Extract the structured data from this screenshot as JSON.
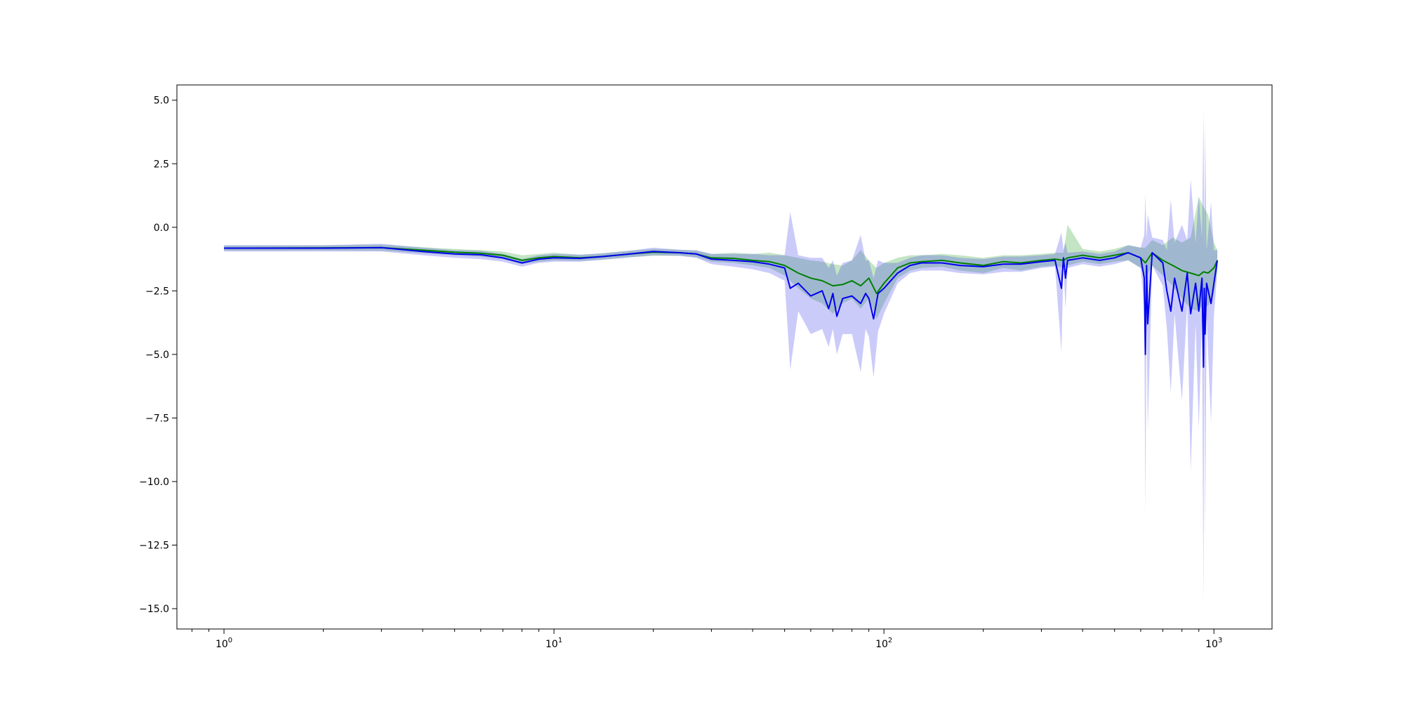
{
  "chart_data": {
    "type": "line",
    "title": "",
    "xlabel": "",
    "ylabel": "",
    "x_scale": "log",
    "xlim": [
      0.72,
      1500
    ],
    "ylim": [
      -15.8,
      5.6
    ],
    "grid": false,
    "legend": "none",
    "x_ticks": [
      {
        "value": 1,
        "base": "10",
        "exp": "0"
      },
      {
        "value": 10,
        "base": "10",
        "exp": "1"
      },
      {
        "value": 100,
        "base": "10",
        "exp": "2"
      },
      {
        "value": 1000,
        "base": "10",
        "exp": "3"
      }
    ],
    "y_ticks": [
      {
        "value": 5.0,
        "label": "5.0"
      },
      {
        "value": 2.5,
        "label": "2.5"
      },
      {
        "value": 0.0,
        "label": "0.0"
      },
      {
        "value": -2.5,
        "label": "−2.5"
      },
      {
        "value": -5.0,
        "label": "−5.0"
      },
      {
        "value": -7.5,
        "label": "−7.5"
      },
      {
        "value": -10.0,
        "label": "−10.0"
      },
      {
        "value": -12.5,
        "label": "−12.5"
      },
      {
        "value": -15.0,
        "label": "−15.0"
      }
    ],
    "series": [
      {
        "color": "#008000",
        "band_color": "#2ca02c",
        "x": [
          1,
          2,
          3,
          4,
          5,
          6,
          7,
          8,
          9,
          10,
          12,
          14,
          17,
          20,
          24,
          27,
          30,
          35,
          40,
          45,
          50,
          55,
          60,
          65,
          70,
          75,
          80,
          85,
          90,
          95,
          100,
          110,
          120,
          130,
          150,
          170,
          200,
          230,
          260,
          300,
          330,
          350,
          360,
          400,
          450,
          500,
          550,
          600,
          620,
          650,
          700,
          750,
          800,
          850,
          900,
          930,
          960,
          1000,
          1024
        ],
        "y": [
          -0.82,
          -0.81,
          -0.8,
          -0.9,
          -0.98,
          -1.02,
          -1.1,
          -1.3,
          -1.2,
          -1.15,
          -1.2,
          -1.15,
          -1.05,
          -0.98,
          -1.0,
          -1.05,
          -1.2,
          -1.22,
          -1.3,
          -1.35,
          -1.5,
          -1.8,
          -2.0,
          -2.1,
          -2.3,
          -2.25,
          -2.1,
          -2.3,
          -2.0,
          -2.6,
          -2.2,
          -1.6,
          -1.4,
          -1.35,
          -1.3,
          -1.4,
          -1.5,
          -1.35,
          -1.4,
          -1.3,
          -1.25,
          -1.3,
          -1.2,
          -1.1,
          -1.2,
          -1.1,
          -1.0,
          -1.2,
          -1.4,
          -1.0,
          -1.3,
          -1.5,
          -1.7,
          -1.8,
          -1.9,
          -1.75,
          -1.8,
          -1.6,
          -1.3
        ],
        "lower": [
          -0.92,
          -0.91,
          -0.92,
          -1.02,
          -1.1,
          -1.15,
          -1.25,
          -1.45,
          -1.35,
          -1.3,
          -1.32,
          -1.27,
          -1.18,
          -1.12,
          -1.12,
          -1.18,
          -1.35,
          -1.4,
          -1.5,
          -1.6,
          -1.9,
          -2.4,
          -2.8,
          -3.0,
          -3.4,
          -3.0,
          -2.8,
          -3.2,
          -2.8,
          -3.6,
          -3.0,
          -2.0,
          -1.7,
          -1.6,
          -1.55,
          -1.7,
          -1.8,
          -1.6,
          -1.7,
          -1.55,
          -1.5,
          -1.6,
          -1.5,
          -1.35,
          -1.45,
          -1.35,
          -1.3,
          -1.6,
          -2.0,
          -1.5,
          -1.9,
          -2.3,
          -2.8,
          -3.2,
          -3.3,
          -3.0,
          -3.1,
          -2.6,
          -1.7
        ],
        "upper": [
          -0.72,
          -0.71,
          -0.68,
          -0.78,
          -0.85,
          -0.9,
          -0.95,
          -1.1,
          -1.05,
          -1.0,
          -1.08,
          -1.03,
          -0.92,
          -0.85,
          -0.88,
          -0.92,
          -1.05,
          -1.0,
          -1.05,
          -1.0,
          -1.1,
          -1.2,
          -1.3,
          -1.35,
          -1.45,
          -1.5,
          -1.3,
          -0.9,
          -1.3,
          -1.6,
          -1.4,
          -1.2,
          -1.1,
          -1.1,
          -1.05,
          -1.1,
          -1.2,
          -1.1,
          -1.1,
          -1.05,
          -1.0,
          -1.0,
          0.1,
          -0.85,
          -0.95,
          -0.85,
          -0.7,
          -0.8,
          -0.8,
          -0.5,
          -0.7,
          -0.4,
          -0.6,
          -0.4,
          1.2,
          0.8,
          0.5,
          -0.6,
          -0.9
        ]
      },
      {
        "color": "#0000ee",
        "band_color": "#4444ee",
        "x": [
          1,
          2,
          3,
          4,
          5,
          6,
          7,
          8,
          9,
          10,
          12,
          14,
          17,
          20,
          24,
          27,
          30,
          35,
          40,
          45,
          50,
          52,
          55,
          60,
          65,
          68,
          70,
          72,
          75,
          80,
          85,
          88,
          90,
          93,
          96,
          100,
          110,
          120,
          130,
          150,
          170,
          200,
          230,
          260,
          300,
          330,
          345,
          350,
          355,
          360,
          400,
          450,
          500,
          550,
          600,
          615,
          620,
          625,
          630,
          650,
          700,
          720,
          740,
          760,
          800,
          830,
          850,
          880,
          900,
          920,
          930,
          935,
          940,
          950,
          980,
          1000,
          1024
        ],
        "y": [
          -0.82,
          -0.82,
          -0.8,
          -0.95,
          -1.05,
          -1.08,
          -1.2,
          -1.4,
          -1.25,
          -1.2,
          -1.22,
          -1.15,
          -1.05,
          -0.95,
          -1.0,
          -1.05,
          -1.25,
          -1.3,
          -1.35,
          -1.45,
          -1.6,
          -2.4,
          -2.2,
          -2.7,
          -2.5,
          -3.2,
          -2.6,
          -3.5,
          -2.8,
          -2.7,
          -3.0,
          -2.6,
          -2.8,
          -3.6,
          -2.6,
          -2.4,
          -1.8,
          -1.5,
          -1.4,
          -1.4,
          -1.5,
          -1.55,
          -1.45,
          -1.45,
          -1.35,
          -1.3,
          -2.4,
          -1.2,
          -2.0,
          -1.3,
          -1.2,
          -1.3,
          -1.2,
          -1.0,
          -1.2,
          -2.0,
          -5.0,
          -1.5,
          -3.8,
          -1.0,
          -1.4,
          -2.5,
          -3.3,
          -2.0,
          -3.3,
          -1.8,
          -3.4,
          -2.2,
          -3.3,
          -2.0,
          -5.5,
          -2.4,
          -4.2,
          -2.2,
          -3.0,
          -2.2,
          -1.3
        ],
        "lower": [
          -0.95,
          -0.95,
          -0.95,
          -1.1,
          -1.2,
          -1.25,
          -1.35,
          -1.55,
          -1.4,
          -1.35,
          -1.35,
          -1.28,
          -1.18,
          -1.1,
          -1.12,
          -1.2,
          -1.45,
          -1.55,
          -1.65,
          -1.8,
          -2.1,
          -5.6,
          -3.3,
          -4.2,
          -4.0,
          -4.7,
          -4.0,
          -5.0,
          -4.2,
          -4.2,
          -5.7,
          -4.0,
          -4.3,
          -5.9,
          -4.1,
          -3.4,
          -2.2,
          -1.8,
          -1.7,
          -1.7,
          -1.8,
          -1.85,
          -1.75,
          -1.75,
          -1.6,
          -1.55,
          -4.9,
          -1.5,
          -3.2,
          -1.6,
          -1.45,
          -1.55,
          -1.45,
          -1.3,
          -1.6,
          -3.2,
          -11.3,
          -2.5,
          -8.0,
          -1.5,
          -2.3,
          -4.0,
          -6.5,
          -3.4,
          -6.8,
          -3.0,
          -9.6,
          -3.8,
          -7.9,
          -3.5,
          -14.9,
          -4.0,
          -12.2,
          -3.5,
          -7.7,
          -3.5,
          -1.7
        ],
        "upper": [
          -0.7,
          -0.7,
          -0.65,
          -0.8,
          -0.9,
          -0.92,
          -1.05,
          -1.25,
          -1.1,
          -1.05,
          -1.08,
          -1.02,
          -0.92,
          -0.8,
          -0.88,
          -0.9,
          -1.05,
          -1.05,
          -1.05,
          -1.1,
          -1.1,
          0.6,
          -1.1,
          -1.2,
          -1.2,
          -1.6,
          -1.3,
          -1.9,
          -1.4,
          -1.3,
          -0.3,
          -1.3,
          -1.3,
          -2.0,
          -1.3,
          -1.4,
          -1.4,
          -1.2,
          -1.1,
          -1.1,
          -1.2,
          -1.25,
          -1.15,
          -1.15,
          -1.1,
          -1.05,
          -0.2,
          -0.9,
          -0.6,
          -1.0,
          -0.95,
          -1.05,
          -0.95,
          -0.7,
          -0.8,
          -0.3,
          1.3,
          -0.5,
          0.5,
          -0.4,
          -0.5,
          -0.9,
          1.1,
          -0.6,
          0.1,
          -0.5,
          1.9,
          -0.6,
          1.2,
          -0.4,
          4.6,
          -0.8,
          4.0,
          -0.9,
          1.0,
          -0.9,
          -0.9
        ]
      }
    ]
  }
}
